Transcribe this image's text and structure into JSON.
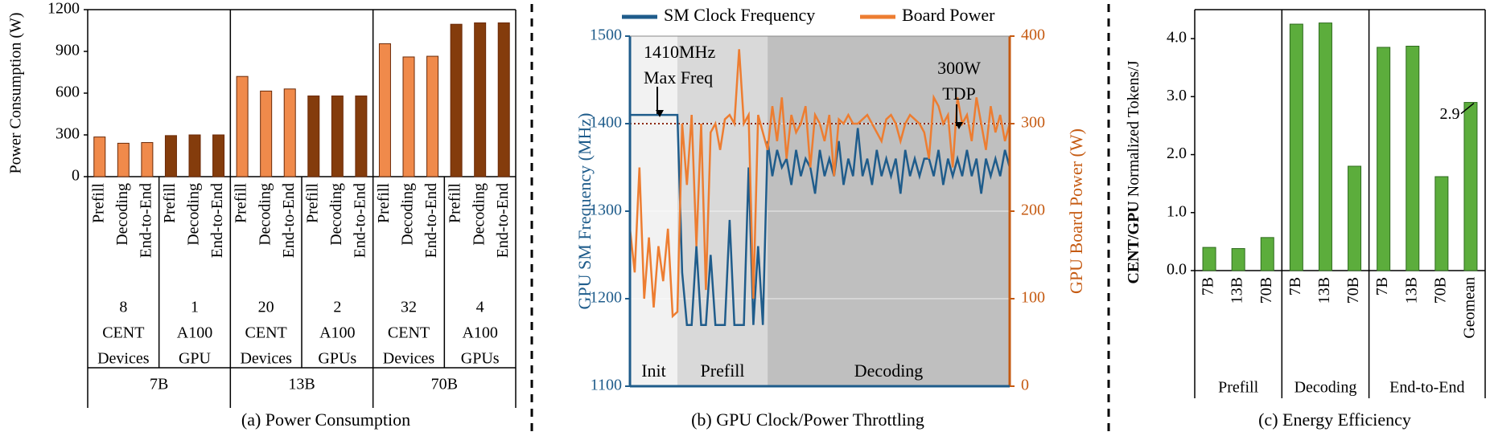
{
  "chart_data": [
    {
      "type": "bar",
      "title": "(a) Power Consumption",
      "y_label": "Power Consumption (W)",
      "ylim": [
        0,
        1200
      ],
      "yticks": [
        0,
        300,
        600,
        900,
        1200
      ],
      "models": [
        {
          "label": "7B",
          "devices": [
            {
              "lines": [
                "8",
                "CENT",
                "Devices"
              ],
              "color": "#F08A4B",
              "categories": [
                "Prefill",
                "Decoding",
                "End-to-End"
              ],
              "values": [
                285,
                240,
                245
              ]
            },
            {
              "lines": [
                "1",
                "A100",
                "GPU"
              ],
              "color": "#843C0C",
              "categories": [
                "Prefill",
                "Decoding",
                "End-to-End"
              ],
              "values": [
                295,
                300,
                300
              ]
            }
          ]
        },
        {
          "label": "13B",
          "devices": [
            {
              "lines": [
                "20",
                "CENT",
                "Devices"
              ],
              "color": "#F08A4B",
              "categories": [
                "Prefill",
                "Decoding",
                "End-to-End"
              ],
              "values": [
                720,
                615,
                630
              ]
            },
            {
              "lines": [
                "2",
                "A100",
                "GPUs"
              ],
              "color": "#843C0C",
              "categories": [
                "Prefill",
                "Decoding",
                "End-to-End"
              ],
              "values": [
                580,
                580,
                580
              ]
            }
          ]
        },
        {
          "label": "70B",
          "devices": [
            {
              "lines": [
                "32",
                "CENT",
                "Devices"
              ],
              "color": "#F08A4B",
              "categories": [
                "Prefill",
                "Decoding",
                "End-to-End"
              ],
              "values": [
                955,
                860,
                865
              ]
            },
            {
              "lines": [
                "4",
                "A100",
                "GPUs"
              ],
              "color": "#843C0C",
              "categories": [
                "Prefill",
                "Decoding",
                "End-to-End"
              ],
              "values": [
                1095,
                1105,
                1105
              ]
            }
          ]
        }
      ]
    },
    {
      "type": "line",
      "title": "(b) GPU Clock/Power Throttling",
      "y_label": "GPU SM Frequency  (MHz)",
      "y2_label": "GPU Board Power (W)",
      "xlim": [
        0,
        80
      ],
      "ylim": [
        1100,
        1500
      ],
      "yticks": [
        1100,
        1200,
        1300,
        1400,
        1500
      ],
      "y2lim": [
        0,
        400
      ],
      "y2ticks": [
        0,
        100,
        200,
        300,
        400
      ],
      "grid": true,
      "x": [
        0,
        1,
        2,
        3,
        4,
        5,
        6,
        7,
        8,
        9,
        10,
        11,
        12,
        13,
        14,
        15,
        16,
        17,
        18,
        19,
        20,
        21,
        22,
        23,
        24,
        25,
        26,
        27,
        28,
        29,
        30,
        31,
        32,
        33,
        34,
        35,
        36,
        37,
        38,
        39,
        40,
        41,
        42,
        43,
        44,
        45,
        46,
        47,
        48,
        49,
        50,
        51,
        52,
        53,
        54,
        55,
        56,
        57,
        58,
        59,
        60,
        61,
        62,
        63,
        64,
        65,
        66,
        67,
        68,
        69,
        70,
        71,
        72,
        73,
        74,
        75,
        76,
        77,
        78,
        79,
        80
      ],
      "series": [
        {
          "name": "SM Clock Frequency",
          "color": "#1F5C8B",
          "axis": "y",
          "values": [
            1410,
            1410,
            1410,
            1410,
            1410,
            1410,
            1410,
            1410,
            1410,
            1410,
            1410,
            1230,
            1170,
            1170,
            1260,
            1170,
            1170,
            1250,
            1170,
            1170,
            1170,
            1290,
            1170,
            1170,
            1170,
            1350,
            1170,
            1260,
            1170,
            1380,
            1340,
            1370,
            1350,
            1360,
            1330,
            1370,
            1340,
            1360,
            1350,
            1320,
            1370,
            1340,
            1360,
            1340,
            1380,
            1330,
            1360,
            1340,
            1395,
            1340,
            1360,
            1330,
            1370,
            1340,
            1360,
            1340,
            1360,
            1320,
            1370,
            1340,
            1360,
            1340,
            1360,
            1360,
            1340,
            1370,
            1330,
            1360,
            1340,
            1360,
            1340,
            1370,
            1340,
            1360,
            1320,
            1360,
            1340,
            1360,
            1340,
            1370,
            1350
          ]
        },
        {
          "name": "Board Power",
          "color": "#ED7D31",
          "axis": "y2",
          "values": [
            180,
            130,
            250,
            100,
            170,
            90,
            160,
            120,
            180,
            80,
            85,
            300,
            230,
            310,
            160,
            300,
            110,
            290,
            300,
            270,
            305,
            310,
            300,
            385,
            300,
            310,
            100,
            310,
            290,
            270,
            320,
            280,
            330,
            260,
            310,
            290,
            300,
            320,
            250,
            310,
            300,
            280,
            310,
            240,
            305,
            300,
            310,
            300,
            300,
            305,
            310,
            300,
            290,
            280,
            305,
            310,
            300,
            280,
            300,
            310,
            305,
            300,
            290,
            260,
            330,
            320,
            300,
            310,
            250,
            330,
            300,
            310,
            280,
            330,
            300,
            270,
            320,
            290,
            310,
            280,
            300
          ]
        }
      ],
      "reference_line": {
        "value": 300,
        "axis": "y2",
        "color": "#8B2500"
      },
      "regions": [
        {
          "label": "Init",
          "x": [
            0,
            10
          ],
          "color": "#F2F2F2"
        },
        {
          "label": "Prefill",
          "x": [
            10,
            29
          ],
          "color": "#D9D9D9"
        },
        {
          "label": "Decoding",
          "x": [
            29,
            80
          ],
          "color": "#BFBFBF"
        }
      ],
      "annotations": [
        {
          "lines": [
            "1410MHz",
            "Max Freq"
          ]
        },
        {
          "lines": [
            "300W",
            "TDP"
          ]
        }
      ]
    },
    {
      "type": "bar",
      "title": "(c) Energy Efficiency",
      "y_label_bold": "CENT/GPU",
      "y_label": " Normalized Tokens/J",
      "ylim": [
        0,
        4.5
      ],
      "color": "#5CAD3C",
      "yticks": [
        {
          "value": 0,
          "label": "0.0"
        },
        {
          "value": 1,
          "label": "1.0"
        },
        {
          "value": 2,
          "label": "2.0"
        },
        {
          "value": 3,
          "label": "3.0"
        },
        {
          "value": 4,
          "label": "4.0"
        }
      ],
      "groups": [
        {
          "label": "Prefill",
          "categories": [
            "7B",
            "13B",
            "70B"
          ],
          "values": [
            0.4,
            0.38,
            0.57
          ]
        },
        {
          "label": "Decoding",
          "categories": [
            "7B",
            "13B",
            "70B"
          ],
          "values": [
            4.25,
            4.27,
            1.8
          ]
        },
        {
          "label": "End-to-End",
          "categories": [
            "7B",
            "13B",
            "70B",
            "Geomean"
          ],
          "values": [
            3.85,
            3.87,
            1.62,
            2.9
          ],
          "value_labels": [
            null,
            null,
            null,
            "2.9"
          ]
        }
      ]
    }
  ]
}
